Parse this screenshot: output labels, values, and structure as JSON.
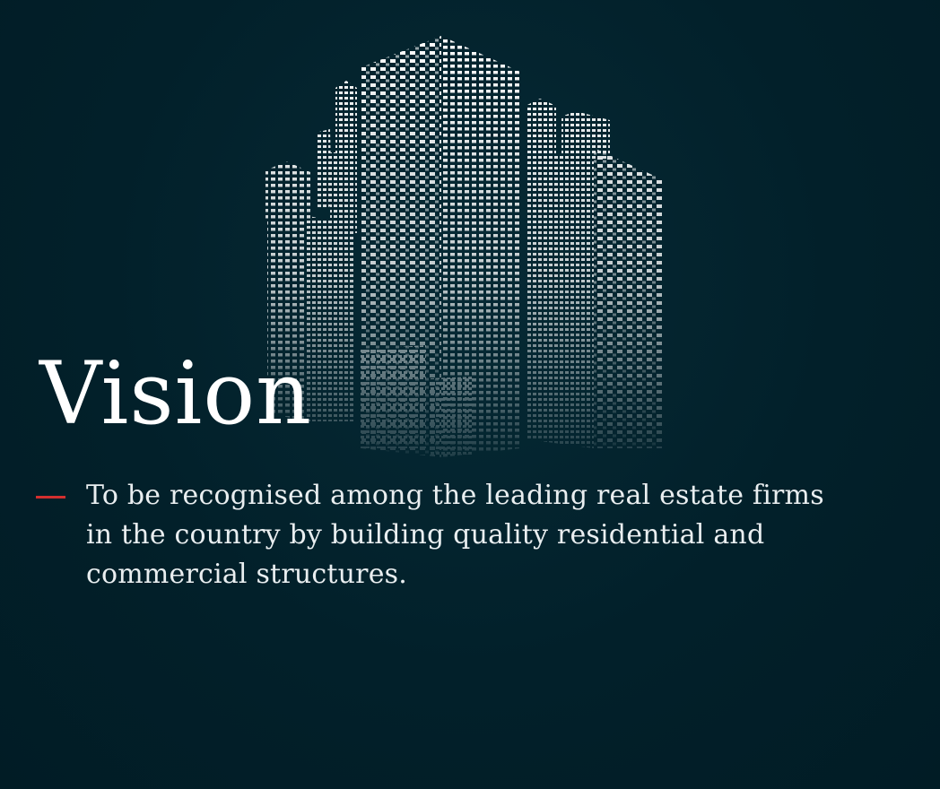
{
  "heading": "Vision",
  "statement": "To be recognised among the leading real estate firms in the country by building quality residential and commercial structures.",
  "colors": {
    "background": "#02202a",
    "accent_dash": "#d32f2f",
    "text": "#ffffff"
  },
  "illustration": "city-skyline-buildings-icon"
}
